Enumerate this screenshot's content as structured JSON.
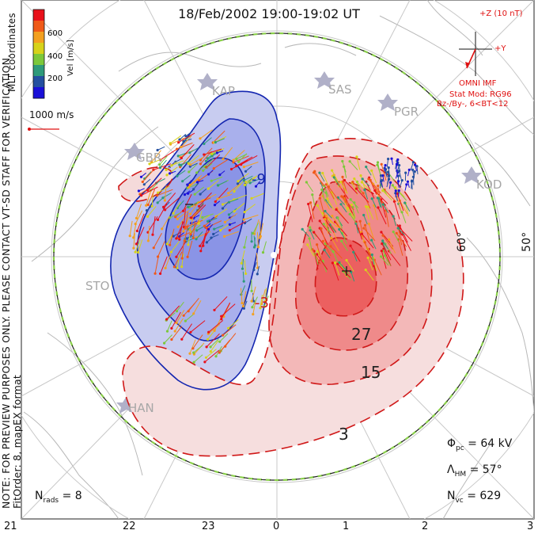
{
  "title": "18/Feb/2002  19:00-19:02  UT",
  "side_notes": {
    "mlt_coordinates": "MLT coordinates",
    "note": "NOTE: FOR PREVIEW PURPOSES ONLY. PLEASE CONTACT VT-SD STAFF FOR VERIFICATION.",
    "fit": "FitOrder: 8, mapEX format"
  },
  "velocity_scale": {
    "label": "Vel [m/s]",
    "ticks": [
      "600",
      "400",
      "200"
    ],
    "colors": [
      "#e8101a",
      "#f05a18",
      "#f3a020",
      "#d7d21a",
      "#7cc83a",
      "#2e9a7a",
      "#2450a0",
      "#1a10d8"
    ],
    "reference_label": "1000 m/s"
  },
  "imf": {
    "z_label": "+Z (10 nT)",
    "y_label": "+Y",
    "source": "OMNI IMF",
    "stat_model": "Stat Mod: RG96",
    "condition": "Bz-/By-, 6<BT<12"
  },
  "stations": [
    "KAP",
    "SAS",
    "PGR",
    "GBR",
    "KOD",
    "STO",
    "HAN"
  ],
  "latitude_labels": [
    "60°",
    "50°"
  ],
  "contour_labels": [
    "-9",
    "-3",
    "27",
    "15",
    "3"
  ],
  "stats": {
    "phi_pc": "Φpc  =  64  kV",
    "phi_sym": "Φ",
    "phi_sub": "pc",
    "phi_val": "=  64  kV",
    "lambda_sym": "Λ",
    "lambda_sub": "HM",
    "lambda_val": "=  57°",
    "nvc_sym": "N",
    "nvc_sub": "vc",
    "nvc_val": "=  629",
    "nrads_sym": "N",
    "nrads_sub": "rads",
    "nrads_val": "=  8"
  },
  "mlt_axis": [
    "21",
    "22",
    "23",
    "0",
    "1",
    "2",
    "3"
  ],
  "colors": {
    "negative_cell": "#5060e0",
    "positive_cell": "#e83a3a",
    "negative_contour": "#1426b0",
    "positive_contour": "#d01818",
    "heppner_boundary": "#8ad04a"
  }
}
